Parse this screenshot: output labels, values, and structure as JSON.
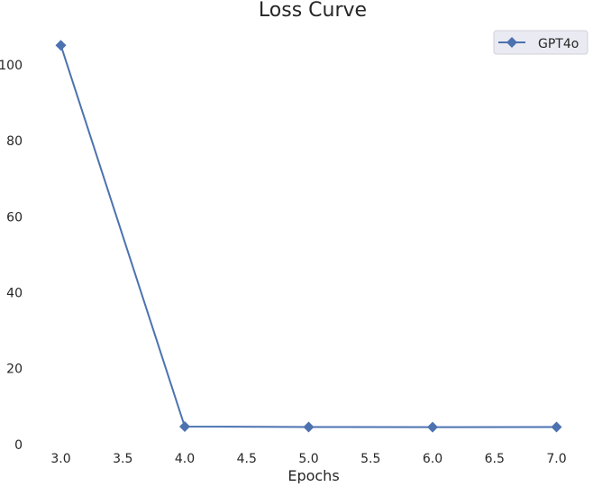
{
  "chart_data": {
    "type": "line",
    "title": "Loss Curve",
    "xlabel": "Epochs",
    "ylabel": "",
    "xlim": [
      2.8,
      7.2
    ],
    "ylim": [
      -1,
      110
    ],
    "xticks": [
      3.0,
      3.5,
      4.0,
      4.5,
      5.0,
      5.5,
      6.0,
      6.5,
      7.0
    ],
    "xtick_labels": [
      "3.0",
      "3.5",
      "4.0",
      "4.5",
      "5.0",
      "5.5",
      "6.0",
      "6.5",
      "7.0"
    ],
    "yticks": [
      0,
      20,
      40,
      60,
      80,
      100
    ],
    "ytick_labels": [
      "0",
      "20",
      "40",
      "60",
      "80",
      "100"
    ],
    "grid": false,
    "legend_position": "top-right",
    "series": [
      {
        "name": "GPT4o",
        "color": "#4c72b0",
        "marker": "diamond",
        "x": [
          3,
          4,
          5,
          6,
          7
        ],
        "y": [
          105.2,
          4.7,
          4.6,
          4.55,
          4.6
        ]
      }
    ]
  }
}
